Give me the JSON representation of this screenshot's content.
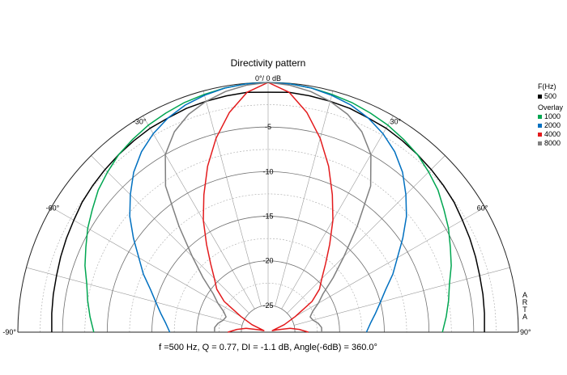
{
  "chart_data": {
    "type": "polar-line",
    "title": "Directivity pattern",
    "top_label": "0°/ 0 dB",
    "half_plane": true,
    "angle_range": [
      -90,
      90
    ],
    "angle_ticks": [
      {
        "angle": -90,
        "label": "-90°"
      },
      {
        "angle": -60,
        "label": "-60°"
      },
      {
        "angle": -30,
        "label": "-30°"
      },
      {
        "angle": 30,
        "label": "30°"
      },
      {
        "angle": 60,
        "label": "60°"
      },
      {
        "angle": 90,
        "label": "90°"
      }
    ],
    "radial_range_db": [
      -28,
      0
    ],
    "radial_ticks": [
      {
        "db": -5,
        "label": "-5"
      },
      {
        "db": -10,
        "label": "-10"
      },
      {
        "db": -15,
        "label": "-15"
      },
      {
        "db": -20,
        "label": "-20"
      },
      {
        "db": -25,
        "label": "-25"
      }
    ],
    "grid": true,
    "side_label": "ARTA",
    "series": [
      {
        "name": "500",
        "color": "#000000",
        "angles": [
          -90,
          -85,
          -80,
          -75,
          -70,
          -65,
          -60,
          -55,
          -50,
          -45,
          -40,
          -35,
          -30,
          -25,
          -20,
          -15,
          -10,
          -5,
          0,
          5,
          10,
          15,
          20,
          25,
          30,
          35,
          40,
          45,
          50,
          55,
          60,
          65,
          70,
          75,
          80,
          85,
          90
        ],
        "values": [
          -3.8,
          -3.7,
          -3.6,
          -3.5,
          -3.3,
          -3.1,
          -2.9,
          -2.6,
          -2.4,
          -2.2,
          -2.0,
          -1.8,
          -1.6,
          -1.5,
          -1.3,
          -1.2,
          -1.1,
          -1.0,
          -1.1,
          -1.0,
          -1.1,
          -1.2,
          -1.3,
          -1.5,
          -1.6,
          -1.8,
          -2.0,
          -2.2,
          -2.4,
          -2.6,
          -2.9,
          -3.1,
          -3.3,
          -3.5,
          -3.6,
          -3.7,
          -3.8
        ]
      },
      {
        "name": "1000",
        "color": "#00a651",
        "angles": [
          -90,
          -85,
          -80,
          -75,
          -70,
          -65,
          -60,
          -55,
          -50,
          -45,
          -40,
          -35,
          -30,
          -25,
          -20,
          -15,
          -10,
          -5,
          0,
          5,
          10,
          15,
          20,
          25,
          30,
          35,
          40,
          45,
          50,
          55,
          60,
          65,
          70,
          75,
          80,
          85,
          90
        ],
        "values": [
          -8.5,
          -8.0,
          -7.5,
          -7.0,
          -6.2,
          -5.5,
          -4.7,
          -4.0,
          -3.2,
          -2.6,
          -2.0,
          -1.6,
          -1.2,
          -0.9,
          -0.6,
          -0.4,
          -0.2,
          -0.05,
          0,
          -0.05,
          -0.2,
          -0.4,
          -0.6,
          -0.9,
          -1.2,
          -1.6,
          -2.0,
          -2.6,
          -3.2,
          -4.0,
          -4.7,
          -5.5,
          -6.2,
          -7.0,
          -7.5,
          -8.0,
          -8.5
        ]
      },
      {
        "name": "2000",
        "color": "#0070c0",
        "angles": [
          -90,
          -85,
          -80,
          -75,
          -70,
          -65,
          -60,
          -55,
          -50,
          -45,
          -40,
          -35,
          -30,
          -25,
          -20,
          -15,
          -10,
          -5,
          0,
          5,
          10,
          15,
          20,
          25,
          30,
          35,
          40,
          45,
          50,
          55,
          60,
          65,
          70,
          75,
          80,
          85,
          90
        ],
        "values": [
          -17.0,
          -16.5,
          -15.8,
          -15.0,
          -14.0,
          -12.6,
          -11.3,
          -9.6,
          -7.8,
          -6.2,
          -4.6,
          -3.3,
          -2.3,
          -1.5,
          -0.9,
          -0.5,
          -0.2,
          -0.05,
          0,
          -0.05,
          -0.2,
          -0.5,
          -0.9,
          -1.5,
          -2.3,
          -3.3,
          -4.6,
          -6.2,
          -7.8,
          -9.6,
          -11.3,
          -12.6,
          -14.0,
          -15.0,
          -15.8,
          -16.5,
          -17.0
        ]
      },
      {
        "name": "4000",
        "color": "#e31a1c",
        "angles": [
          -90,
          -85,
          -80,
          -75,
          -70,
          -65,
          -60,
          -55,
          -50,
          -45,
          -40,
          -35,
          -30,
          -25,
          -20,
          -15,
          -10,
          -5,
          0,
          5,
          10,
          15,
          20,
          25,
          30,
          35,
          40,
          45,
          50,
          55,
          60,
          65,
          70,
          75,
          80,
          85,
          90
        ],
        "values": [
          -23.5,
          -24.5,
          -25.5,
          -27.0,
          -27.5,
          -26.0,
          -24.5,
          -22.0,
          -20.5,
          -19.5,
          -18.0,
          -16.0,
          -13.5,
          -11.0,
          -8.2,
          -5.5,
          -3.0,
          -1.0,
          0,
          -1.0,
          -3.0,
          -5.5,
          -8.2,
          -11.0,
          -13.5,
          -16.0,
          -18.0,
          -19.5,
          -20.5,
          -22.0,
          -24.5,
          -26.0,
          -27.5,
          -27.0,
          -25.5,
          -24.5,
          -23.5
        ]
      },
      {
        "name": "8000",
        "color": "#808080",
        "angles": [
          -90,
          -85,
          -80,
          -75,
          -70,
          -65,
          -60,
          -55,
          -50,
          -45,
          -40,
          -35,
          -30,
          -25,
          -20,
          -15,
          -10,
          -5,
          0,
          5,
          10,
          15,
          20,
          25,
          30,
          35,
          40,
          45,
          50,
          55,
          60,
          65,
          70,
          75,
          80,
          85,
          90
        ],
        "values": [
          -22.0,
          -22.0,
          -22.3,
          -22.8,
          -23.0,
          -22.5,
          -21.5,
          -20.5,
          -18.5,
          -16.0,
          -12.5,
          -8.0,
          -5.0,
          -3.2,
          -2.0,
          -1.2,
          -0.6,
          -0.2,
          0,
          -0.2,
          -0.6,
          -1.2,
          -2.0,
          -3.2,
          -5.0,
          -8.0,
          -12.5,
          -16.0,
          -18.5,
          -20.5,
          -21.5,
          -22.5,
          -23.0,
          -22.8,
          -22.3,
          -22.0,
          -22.0
        ]
      }
    ],
    "legend": {
      "header": "F(Hz)",
      "overlay_label": "Overlay",
      "placement": "right"
    },
    "footer": "f =500 Hz,  Q =  0.77,  DI =  -1.1 dB,  Angle(-6dB) = 360.0°"
  }
}
